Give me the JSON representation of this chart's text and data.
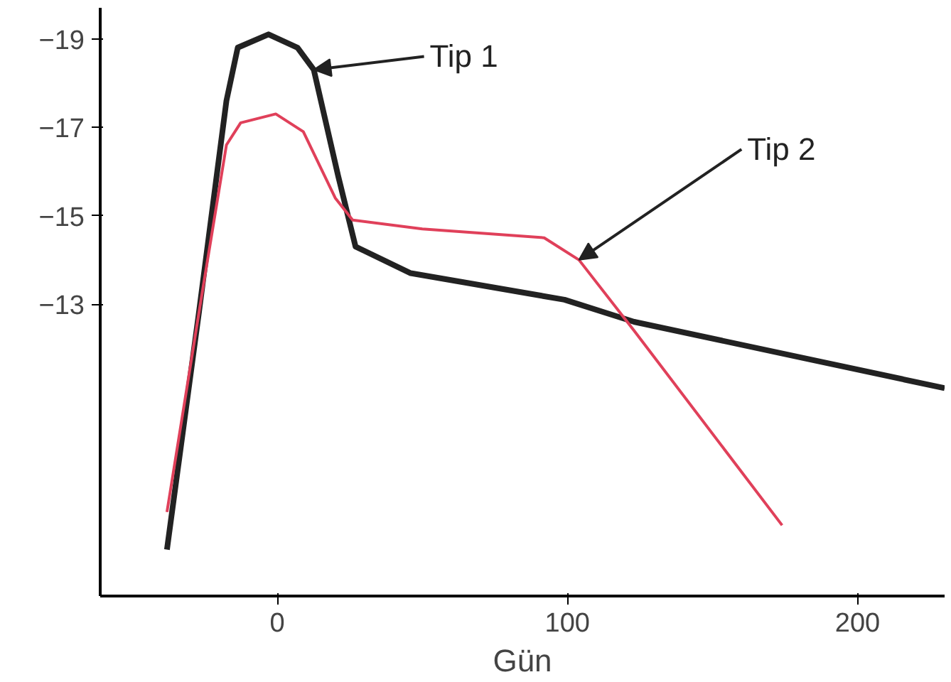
{
  "chart_data": {
    "type": "line",
    "xlabel": "Gün",
    "xlim": [
      -61,
      230
    ],
    "ylim": [
      -6.4,
      -19.7
    ],
    "xticks": [
      0,
      100,
      200
    ],
    "yticks": [
      -19,
      -17,
      -15,
      -13
    ],
    "grid": false,
    "marker": "none",
    "line_style": "solid",
    "annotations": [
      {
        "text": "Tip 1",
        "x": 12.6,
        "y": -18.3
      },
      {
        "text": "Tip 2",
        "x": 104,
        "y": -14.0
      }
    ],
    "series": [
      {
        "color": "#222222",
        "x": [
          -38,
          -27,
          -17.5,
          -13.6,
          -3,
          7,
          12.6,
          21,
          27,
          46,
          99,
          123,
          230
        ],
        "values": [
          -7.45,
          -12.8,
          -17.6,
          -18.8,
          -19.1,
          -18.8,
          -18.3,
          -15.9,
          -14.3,
          -13.7,
          -13.1,
          -12.6,
          -11.1
        ]
      },
      {
        "color": "#e0405a",
        "x": [
          -38,
          -27,
          -17.5,
          -12.6,
          -0.5,
          9,
          20,
          26,
          50,
          92,
          104,
          123,
          174
        ],
        "values": [
          -8.3,
          -12.8,
          -16.6,
          -17.1,
          -17.3,
          -16.9,
          -15.4,
          -14.9,
          -14.7,
          -14.5,
          -14.0,
          -12.4,
          -8.0
        ]
      }
    ]
  }
}
